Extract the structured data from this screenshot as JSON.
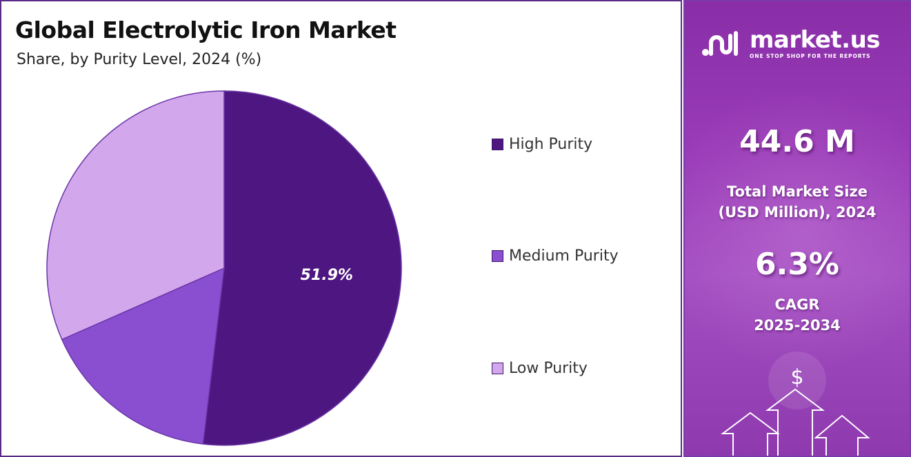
{
  "chart_data": {
    "type": "pie",
    "title": "Global Electrolytic Iron Market",
    "subtitle": "Share, by Purity Level, 2024 (%)",
    "categories": [
      "High Purity",
      "Medium Purity",
      "Low Purity"
    ],
    "values": [
      51.9,
      16.5,
      31.6
    ],
    "labels": [
      "51.9%",
      "",
      ""
    ],
    "colors": [
      "#4d1680",
      "#8a4fd1",
      "#d2a7ec"
    ],
    "legend_position": "right"
  },
  "side_panel": {
    "brand": "market.us",
    "tagline": "ONE STOP SHOP FOR THE REPORTS",
    "market_size_value": "44.6 M",
    "market_size_label_line1": "Total Market Size",
    "market_size_label_line2": "(USD Million), 2024",
    "cagr_value": "6.3%",
    "cagr_label_line1": "CAGR",
    "cagr_label_line2": "2025-2034",
    "dollar_symbol": "$",
    "background_color": "#9a3cb8"
  }
}
